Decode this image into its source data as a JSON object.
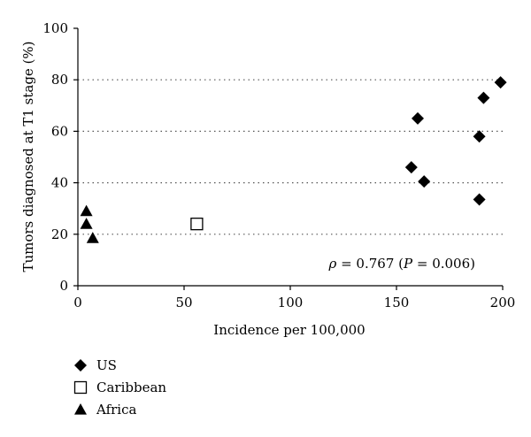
{
  "chart_data": {
    "type": "scatter",
    "xlabel": "Incidence per 100,000",
    "ylabel": "Tumors diagnosed at T1 stage (%)",
    "xlim": [
      0,
      200
    ],
    "ylim": [
      0,
      100
    ],
    "xticks": [
      0,
      50,
      100,
      150,
      200
    ],
    "yticks": [
      0,
      20,
      40,
      60,
      80,
      100
    ],
    "grid": "horizontal-dotted",
    "annotation": {
      "rho_symbol": "ρ",
      "rho_text": " = 0.767 (",
      "p_symbol": "P",
      "p_text": " = 0.006)"
    },
    "legend_position": "bottom-left, below plot",
    "series": [
      {
        "name": "US",
        "marker": "diamond",
        "points": [
          {
            "x": 157,
            "y": 46
          },
          {
            "x": 160,
            "y": 65
          },
          {
            "x": 163,
            "y": 40.5
          },
          {
            "x": 189,
            "y": 33.5
          },
          {
            "x": 189,
            "y": 58
          },
          {
            "x": 191,
            "y": 73
          },
          {
            "x": 199,
            "y": 79
          }
        ]
      },
      {
        "name": "Caribbean",
        "marker": "open-square",
        "points": [
          {
            "x": 56,
            "y": 24
          }
        ]
      },
      {
        "name": "Africa",
        "marker": "triangle",
        "points": [
          {
            "x": 4,
            "y": 29
          },
          {
            "x": 4,
            "y": 24
          },
          {
            "x": 7,
            "y": 18.5
          }
        ]
      }
    ]
  }
}
